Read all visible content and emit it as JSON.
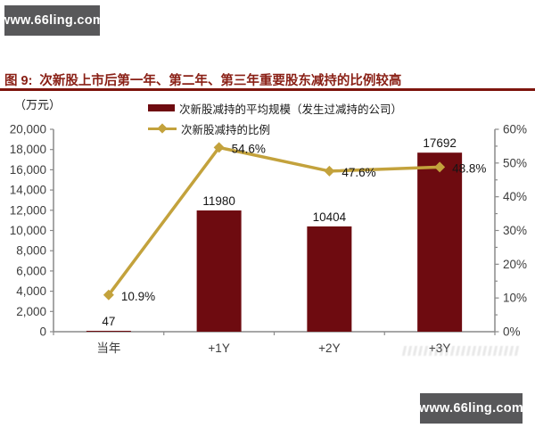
{
  "branding": {
    "top_logo": "www.66ling.com",
    "bottom_logo": "www.66ling.com",
    "box_color": "#58585a"
  },
  "figure": {
    "label": "图 9:",
    "title": "次新股上市后第一年、第二年、第三年重要股东减持的比例较高",
    "accent_color": "#8a2016"
  },
  "chart_data": {
    "type": "bar",
    "title": "次新股上市后第一年、第二年、第三年重要股东减持的比例较高",
    "categories": [
      "当年",
      "+1Y",
      "+2Y",
      "+3Y"
    ],
    "series": [
      {
        "name": "次新股减持的平均规模（发生过减持的公司）",
        "type": "bar",
        "axis": "left",
        "values": [
          47,
          11980,
          10404,
          17692
        ],
        "labels": [
          "47",
          "11980",
          "10404",
          "17692"
        ],
        "color": "#6e0b10"
      },
      {
        "name": "次新股减持的比例",
        "type": "line",
        "axis": "right",
        "values": [
          10.9,
          54.6,
          47.6,
          48.8
        ],
        "labels": [
          "10.9%",
          "54.6%",
          "47.6%",
          "48.8%"
        ],
        "color": "#c3a23c"
      }
    ],
    "left_axis": {
      "label": "（万元）",
      "min": 0,
      "max": 20000,
      "step": 2000,
      "tick_labels": [
        "20,000",
        "18,000",
        "16,000",
        "14,000",
        "12,000",
        "10,000",
        "8,000",
        "6,000",
        "4,000",
        "2,000",
        "0"
      ]
    },
    "right_axis": {
      "min": 0,
      "max": 60,
      "step": 10,
      "minor_step": 5,
      "tick_labels": [
        "60%",
        "50%",
        "40%",
        "30%",
        "20%",
        "10%",
        "0%"
      ]
    },
    "legend_position": "top",
    "grid": false
  }
}
